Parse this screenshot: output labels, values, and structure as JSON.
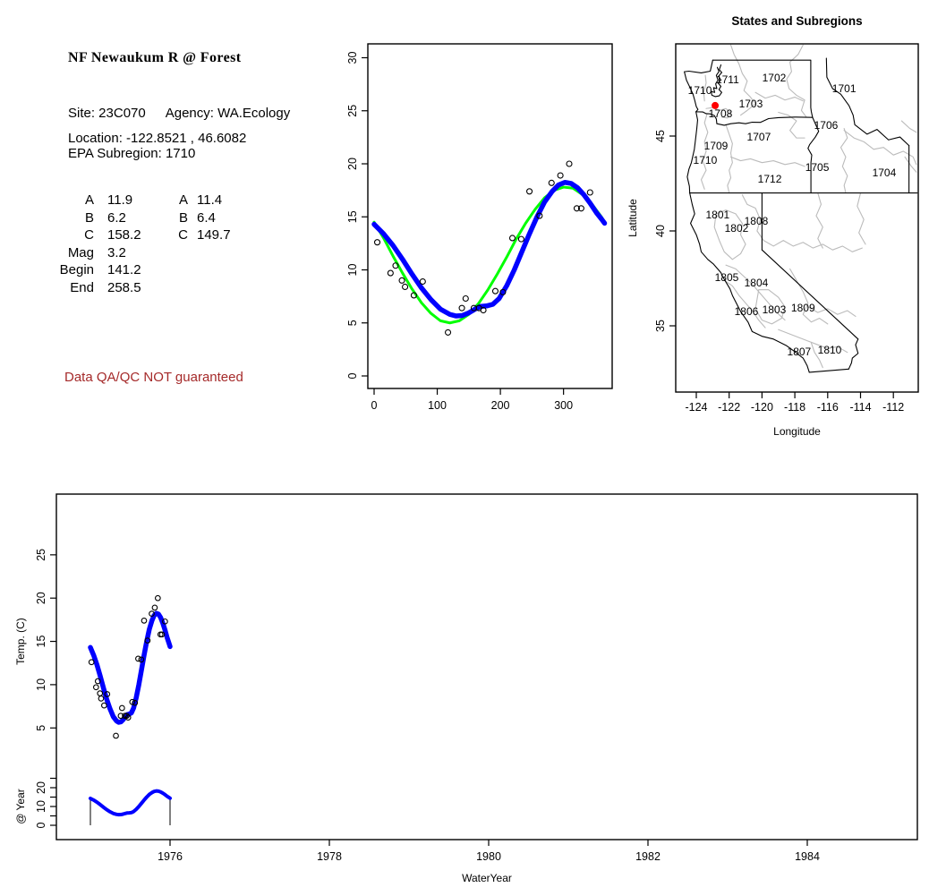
{
  "info_panel": {
    "title": "NF Newaukum R @ Forest",
    "site_text": "Site: 23C070",
    "agency_text": "Agency: WA.Ecology",
    "location_line": "Location: -122.8521 , 46.6082",
    "epa_line": "EPA Subregion: 1710",
    "params_left": [
      {
        "label": "A",
        "value": "11.9"
      },
      {
        "label": "B",
        "value": "6.2"
      },
      {
        "label": "C",
        "value": "158.2"
      },
      {
        "label": "Mag",
        "value": "3.2"
      },
      {
        "label": "Begin",
        "value": "141.2"
      },
      {
        "label": "End",
        "value": "258.5"
      }
    ],
    "params_right": [
      {
        "label": "A",
        "value": "11.4"
      },
      {
        "label": "B",
        "value": "6.4"
      },
      {
        "label": "C",
        "value": "149.7"
      }
    ],
    "qa_note": "Data QA/QC NOT guaranteed",
    "qa_color": "#A52A2A"
  },
  "chart_data": {
    "seasonal_fit_plot": {
      "type": "scatter",
      "title": "",
      "xlabel": "",
      "ylabel": "",
      "x_ticks": [
        0,
        100,
        200,
        300
      ],
      "y_ticks": [
        0,
        5,
        10,
        15,
        20,
        25,
        30
      ],
      "xlim": [
        -10,
        378
      ],
      "ylim": [
        -1.6,
        31.6
      ],
      "point_color": "#000000",
      "points_day_temp": [
        [
          5,
          12.6
        ],
        [
          26,
          9.7
        ],
        [
          34,
          10.4
        ],
        [
          44,
          9.0
        ],
        [
          49,
          8.4
        ],
        [
          63,
          7.6
        ],
        [
          77,
          8.9
        ],
        [
          117,
          4.1
        ],
        [
          139,
          6.4
        ],
        [
          145,
          7.3
        ],
        [
          158,
          6.4
        ],
        [
          166,
          6.4
        ],
        [
          173,
          6.2
        ],
        [
          192,
          8.0
        ],
        [
          204,
          7.9
        ],
        [
          219,
          13.0
        ],
        [
          233,
          12.9
        ],
        [
          246,
          17.4
        ],
        [
          262,
          15.1
        ],
        [
          281,
          18.2
        ],
        [
          295,
          18.9
        ],
        [
          309,
          20.0
        ],
        [
          321,
          15.8
        ],
        [
          328,
          15.8
        ],
        [
          342,
          17.3
        ]
      ],
      "fit_sine_green": {
        "color": "#00FF00",
        "points": [
          [
            0,
            14.5
          ],
          [
            15,
            13.0
          ],
          [
            30,
            11.3
          ],
          [
            45,
            9.7
          ],
          [
            60,
            8.2
          ],
          [
            75,
            6.9
          ],
          [
            90,
            5.9
          ],
          [
            105,
            5.2
          ],
          [
            120,
            5.0
          ],
          [
            135,
            5.2
          ],
          [
            150,
            5.8
          ],
          [
            165,
            6.8
          ],
          [
            180,
            8.1
          ],
          [
            195,
            9.6
          ],
          [
            210,
            11.2
          ],
          [
            225,
            12.9
          ],
          [
            240,
            14.4
          ],
          [
            255,
            15.7
          ],
          [
            270,
            16.8
          ],
          [
            285,
            17.5
          ],
          [
            300,
            17.8
          ],
          [
            315,
            17.7
          ],
          [
            330,
            17.1
          ],
          [
            345,
            16.2
          ],
          [
            360,
            15.0
          ],
          [
            365,
            14.5
          ]
        ]
      },
      "fit_smooth_blue": {
        "color": "#0000FF",
        "points": [
          [
            0,
            14.3
          ],
          [
            15,
            13.4
          ],
          [
            30,
            12.3
          ],
          [
            45,
            11.0
          ],
          [
            60,
            9.6
          ],
          [
            75,
            8.3
          ],
          [
            90,
            7.2
          ],
          [
            105,
            6.3
          ],
          [
            120,
            5.8
          ],
          [
            130,
            5.65
          ],
          [
            140,
            5.7
          ],
          [
            150,
            5.95
          ],
          [
            160,
            6.3
          ],
          [
            168,
            6.55
          ],
          [
            178,
            6.6
          ],
          [
            188,
            6.75
          ],
          [
            198,
            7.3
          ],
          [
            210,
            8.5
          ],
          [
            222,
            10.0
          ],
          [
            234,
            11.7
          ],
          [
            246,
            13.4
          ],
          [
            258,
            15.0
          ],
          [
            270,
            16.4
          ],
          [
            282,
            17.4
          ],
          [
            292,
            18.0
          ],
          [
            302,
            18.25
          ],
          [
            312,
            18.15
          ],
          [
            322,
            17.75
          ],
          [
            332,
            17.1
          ],
          [
            342,
            16.3
          ],
          [
            352,
            15.4
          ],
          [
            360,
            14.8
          ],
          [
            365,
            14.4
          ]
        ]
      }
    },
    "map_plot": {
      "type": "map",
      "title": "States and Subregions",
      "xlabel": "Longitude",
      "ylabel": "Latitude",
      "x_ticks": [
        -124,
        -122,
        -120,
        -118,
        -116,
        -114,
        -112
      ],
      "y_ticks": [
        35,
        40,
        45
      ],
      "xlim": [
        -125.3,
        -110.5
      ],
      "ylim": [
        31.5,
        49.9
      ],
      "state_border_color": "#000000",
      "subregion_border_color": "#BBBBBB",
      "subregion_labels": [
        {
          "code": "1711",
          "lon": -122.1,
          "lat": 47.97
        },
        {
          "code": "1702",
          "lon": -119.26,
          "lat": 48.07
        },
        {
          "code": "1701",
          "lon": -115.0,
          "lat": 47.5
        },
        {
          "code": "1710",
          "lon": -123.78,
          "lat": 47.4
        },
        {
          "code": "1703",
          "lon": -120.68,
          "lat": 46.7
        },
        {
          "code": "1708",
          "lon": -122.53,
          "lat": 46.18
        },
        {
          "code": "1706",
          "lon": -116.1,
          "lat": 45.57
        },
        {
          "code": "1707",
          "lon": -120.19,
          "lat": 44.95
        },
        {
          "code": "1709",
          "lon": -122.8,
          "lat": 44.48
        },
        {
          "code": "1710",
          "lon": -123.46,
          "lat": 43.73
        },
        {
          "code": "1705",
          "lon": -116.64,
          "lat": 43.35
        },
        {
          "code": "1704",
          "lon": -112.56,
          "lat": 43.07
        },
        {
          "code": "1712",
          "lon": -119.53,
          "lat": 42.74
        },
        {
          "code": "1801",
          "lon": -122.7,
          "lat": 40.85
        },
        {
          "code": "1808",
          "lon": -120.35,
          "lat": 40.52
        },
        {
          "code": "1802",
          "lon": -121.55,
          "lat": 40.14
        },
        {
          "code": "1805",
          "lon": -122.15,
          "lat": 37.55
        },
        {
          "code": "1804",
          "lon": -120.35,
          "lat": 37.26
        },
        {
          "code": "1806",
          "lon": -120.95,
          "lat": 35.75
        },
        {
          "code": "1803",
          "lon": -119.26,
          "lat": 35.85
        },
        {
          "code": "1809",
          "lon": -117.5,
          "lat": 35.94
        },
        {
          "code": "1807",
          "lon": -117.74,
          "lat": 33.63
        },
        {
          "code": "1810",
          "lon": -115.88,
          "lat": 33.73
        }
      ],
      "site_marker": {
        "lon": -122.8521,
        "lat": 46.6082,
        "color": "#FF0000"
      }
    },
    "timeseries_plot": {
      "type": "scatter+line",
      "xlabel": "WaterYear",
      "ylabel": "Temp. (C)",
      "ylabel2": "@ Year",
      "x_ticks": [
        1976,
        1978,
        1980,
        1982,
        1984
      ],
      "y_ticks": [
        5,
        10,
        15,
        20,
        25
      ],
      "y2_ticks_all": [
        0,
        5,
        10,
        15,
        20,
        25
      ],
      "y2_ticks_labeled": [
        0,
        10,
        20
      ],
      "xlim": [
        1974.58,
        1985.33
      ],
      "water_year_start": 1975,
      "water_year_end": 1976,
      "line_color": "#0000FF"
    }
  }
}
